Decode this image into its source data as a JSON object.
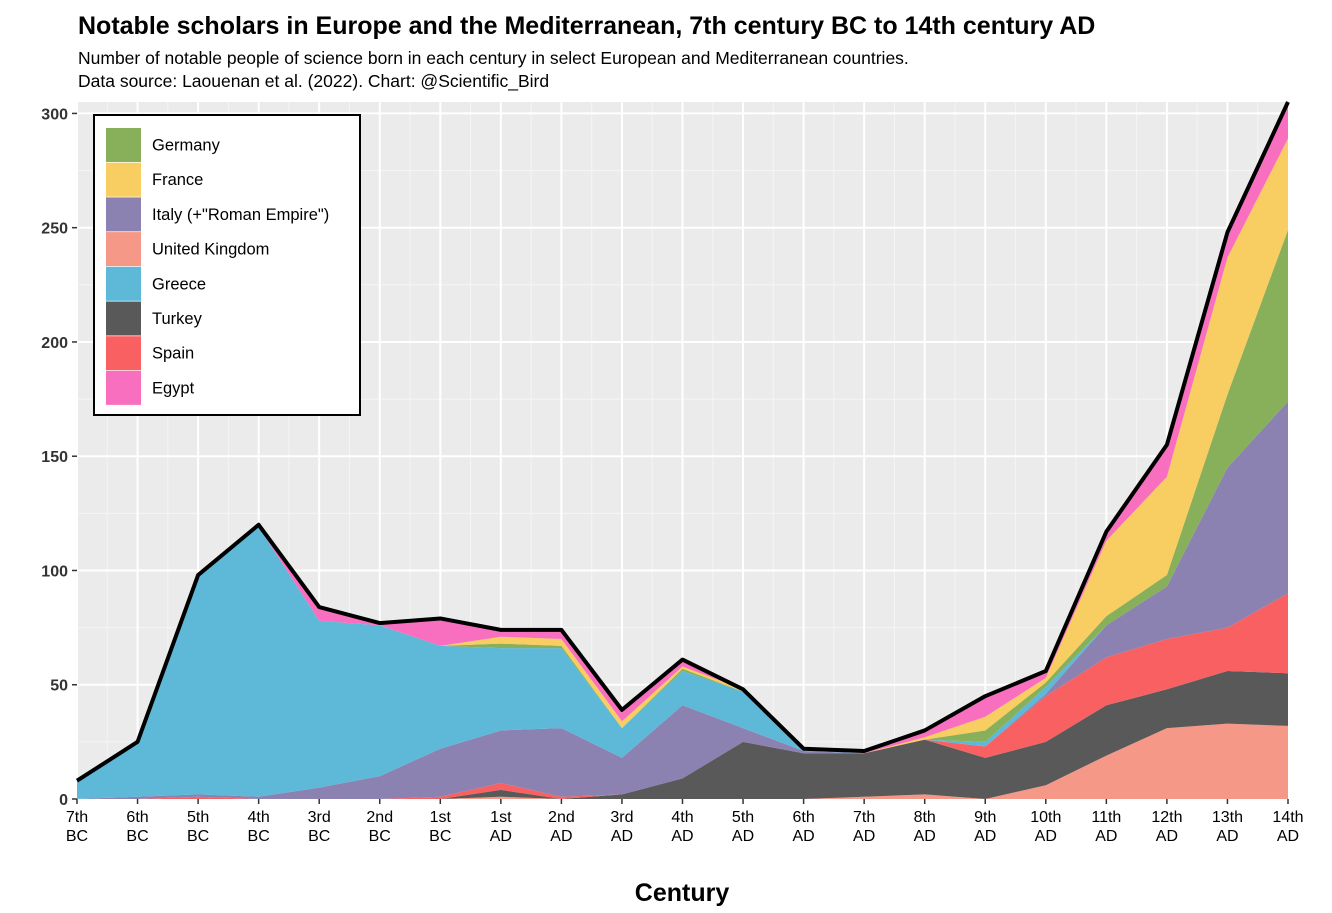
{
  "chart_data": {
    "type": "area",
    "stacked": true,
    "title": "Notable scholars in Europe and the Mediterranean, 7th century BC to 14th century AD",
    "subtitle_lines": [
      "Number of notable people of science born in each century in select European and Mediterranean countries.",
      "Data source: Laouenan et al. (2022). Chart: @Scientific_Bird"
    ],
    "xlabel": "Century",
    "ylabel": "",
    "ylim": [
      0,
      305
    ],
    "yticks": [
      0,
      50,
      100,
      150,
      200,
      250,
      300
    ],
    "grid": true,
    "legend_position": "top-left",
    "categories": [
      [
        "7th",
        "BC"
      ],
      [
        "6th",
        "BC"
      ],
      [
        "5th",
        "BC"
      ],
      [
        "4th",
        "BC"
      ],
      [
        "3rd",
        "BC"
      ],
      [
        "2nd",
        "BC"
      ],
      [
        "1st",
        "BC"
      ],
      [
        "1st",
        "AD"
      ],
      [
        "2nd",
        "AD"
      ],
      [
        "3rd",
        "AD"
      ],
      [
        "4th",
        "AD"
      ],
      [
        "5th",
        "AD"
      ],
      [
        "6th",
        "AD"
      ],
      [
        "7th",
        "AD"
      ],
      [
        "8th",
        "AD"
      ],
      [
        "9th",
        "AD"
      ],
      [
        "10th",
        "AD"
      ],
      [
        "11th",
        "AD"
      ],
      [
        "12th",
        "AD"
      ],
      [
        "13th",
        "AD"
      ],
      [
        "14th",
        "AD"
      ]
    ],
    "stack_order_bottom_to_top": [
      "United Kingdom",
      "Turkey",
      "Spain",
      "Italy (+\"Roman Empire\")",
      "Greece",
      "Germany",
      "France",
      "Egypt"
    ],
    "series": [
      {
        "name": "Germany",
        "color": "#88b05a",
        "values": [
          0,
          0,
          0,
          0,
          0,
          0,
          0,
          2,
          1,
          0,
          1,
          0,
          0,
          0,
          0,
          5,
          2,
          4,
          5,
          32,
          75
        ]
      },
      {
        "name": "France",
        "color": "#f8cd62",
        "values": [
          0,
          0,
          0,
          0,
          0,
          0,
          0,
          3,
          3,
          3,
          1,
          1,
          0,
          0,
          1,
          6,
          2,
          33,
          43,
          60,
          40
        ]
      },
      {
        "name": "Italy (+\"Roman Empire\")",
        "color": "#8b82b2",
        "values": [
          0,
          1,
          1,
          1,
          5,
          10,
          21,
          23,
          30,
          16,
          32,
          6,
          1,
          0,
          0,
          0,
          1,
          14,
          23,
          70,
          84
        ]
      },
      {
        "name": "United Kingdom",
        "color": "#f59887",
        "values": [
          0,
          0,
          0,
          0,
          0,
          0,
          0,
          1,
          0,
          0,
          0,
          0,
          0,
          1,
          2,
          0,
          6,
          19,
          31,
          33,
          32
        ]
      },
      {
        "name": "Greece",
        "color": "#5eb9d9",
        "values": [
          8,
          24,
          96,
          118,
          73,
          66,
          45,
          36,
          35,
          13,
          15,
          16,
          1,
          0,
          0,
          2,
          3,
          0,
          0,
          0,
          0
        ]
      },
      {
        "name": "Turkey",
        "color": "#595959",
        "values": [
          0,
          0,
          0,
          0,
          0,
          0,
          0,
          3,
          0,
          2,
          9,
          25,
          20,
          19,
          24,
          18,
          19,
          22,
          17,
          23,
          23
        ]
      },
      {
        "name": "Spain",
        "color": "#f96062",
        "values": [
          0,
          0,
          1,
          0,
          0,
          0,
          1,
          3,
          1,
          0,
          0,
          0,
          0,
          0,
          0,
          5,
          20,
          21,
          22,
          19,
          35
        ]
      },
      {
        "name": "Egypt",
        "color": "#f96fbf",
        "values": [
          0,
          0,
          0,
          1,
          6,
          1,
          12,
          3,
          4,
          5,
          3,
          0,
          0,
          1,
          3,
          9,
          3,
          4,
          14,
          11,
          16
        ]
      }
    ],
    "annotations": {
      "total_outline": "black line tracing the stacked total"
    }
  }
}
